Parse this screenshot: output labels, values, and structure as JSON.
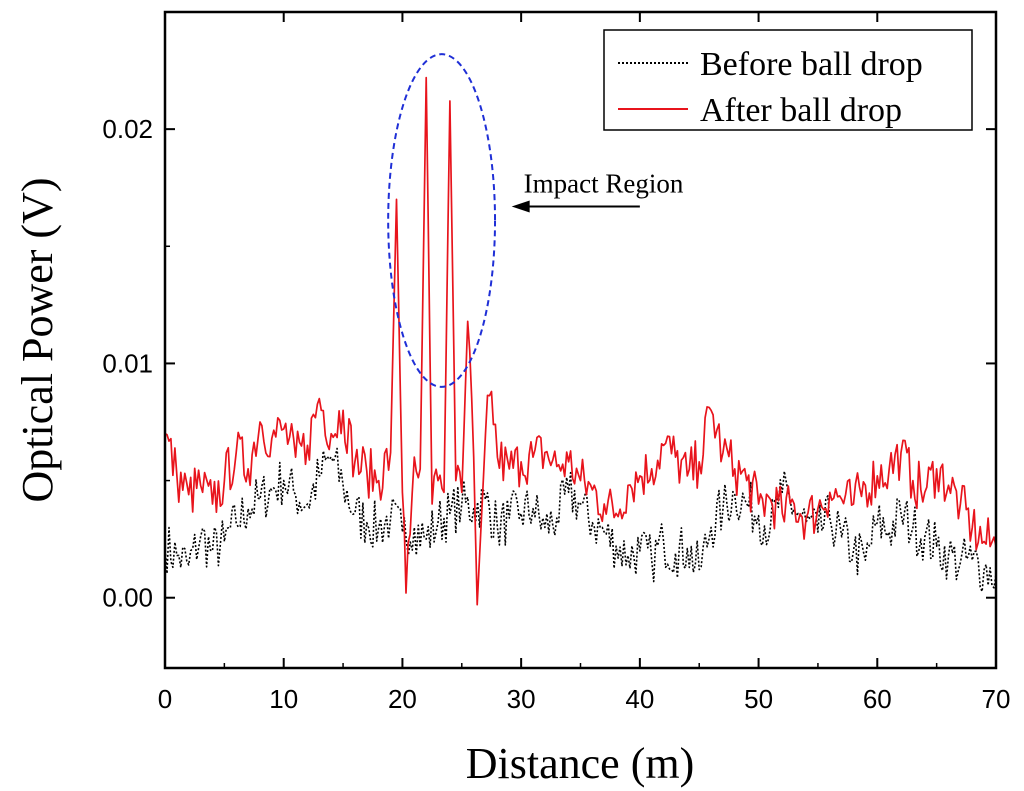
{
  "chart_data": {
    "type": "line",
    "title": "",
    "xlabel": "Distance (m)",
    "ylabel": "Optical Power (V)",
    "xlim": [
      0,
      70
    ],
    "ylim": [
      -0.003,
      0.025
    ],
    "x_ticks": [
      0,
      10,
      20,
      30,
      40,
      50,
      60,
      70
    ],
    "x_tick_labels": [
      "0",
      "10",
      "20",
      "30",
      "40",
      "50",
      "60",
      "70"
    ],
    "y_ticks": [
      0.0,
      0.01,
      0.02
    ],
    "y_tick_labels": [
      "0.00",
      "0.01",
      "0.02"
    ],
    "grid": false,
    "legend_position": "top-right",
    "series": [
      {
        "name": "Before ball drop",
        "color": "#000000",
        "style": "dotted",
        "x": [
          0,
          1,
          2,
          3,
          4,
          5,
          6,
          7,
          8,
          9,
          10,
          11,
          12,
          13,
          14,
          15,
          16,
          17,
          18,
          19,
          20,
          21,
          22,
          23,
          24,
          25,
          26,
          27,
          28,
          29,
          30,
          31,
          32,
          33,
          34,
          35,
          36,
          37,
          38,
          39,
          40,
          41,
          42,
          43,
          44,
          45,
          46,
          47,
          48,
          49,
          50,
          51,
          52,
          53,
          54,
          55,
          56,
          57,
          58,
          59,
          60,
          61,
          62,
          63,
          64,
          65,
          66,
          67,
          68,
          69,
          70
        ],
        "y": [
          0.0022,
          0.0018,
          0.0014,
          0.0026,
          0.002,
          0.0024,
          0.0032,
          0.0038,
          0.0042,
          0.0046,
          0.005,
          0.0044,
          0.004,
          0.0052,
          0.006,
          0.0048,
          0.0036,
          0.0032,
          0.003,
          0.0034,
          0.0028,
          0.003,
          0.0025,
          0.0032,
          0.0036,
          0.004,
          0.0038,
          0.0042,
          0.003,
          0.0034,
          0.0036,
          0.0038,
          0.003,
          0.0034,
          0.0045,
          0.004,
          0.0032,
          0.0028,
          0.0022,
          0.0018,
          0.002,
          0.0016,
          0.0024,
          0.0019,
          0.0021,
          0.0012,
          0.003,
          0.0038,
          0.0044,
          0.004,
          0.0035,
          0.003,
          0.0045,
          0.0038,
          0.0032,
          0.0028,
          0.0034,
          0.0026,
          0.002,
          0.0016,
          0.0032,
          0.0028,
          0.0036,
          0.003,
          0.0026,
          0.0022,
          0.0018,
          0.0015,
          0.0016,
          0.0012,
          0.001
        ]
      },
      {
        "name": "After ball drop",
        "color": "#e8141c",
        "style": "solid",
        "x": [
          0,
          1,
          2,
          3,
          4,
          5,
          6,
          7,
          8,
          9,
          10,
          11,
          12,
          13,
          14,
          15,
          16,
          17,
          18,
          19,
          19.5,
          20,
          20.3,
          21,
          21.5,
          22,
          22.5,
          23,
          23.5,
          24,
          24.5,
          25,
          25.5,
          26,
          26.3,
          27,
          27.5,
          28,
          29,
          30,
          31,
          32,
          33,
          34,
          35,
          36,
          37,
          38,
          39,
          40,
          41,
          42,
          43,
          44,
          45,
          46,
          47,
          48,
          49,
          50,
          51,
          52,
          53,
          54,
          55,
          56,
          57,
          58,
          59,
          60,
          61,
          62,
          63,
          64,
          65,
          66,
          67,
          68,
          69,
          70
        ],
        "y": [
          0.007,
          0.0052,
          0.0044,
          0.0048,
          0.004,
          0.005,
          0.0062,
          0.0055,
          0.0075,
          0.0068,
          0.0072,
          0.006,
          0.0065,
          0.0085,
          0.007,
          0.008,
          0.0058,
          0.0054,
          0.005,
          0.0062,
          0.017,
          0.0045,
          0.0002,
          0.006,
          0.0055,
          0.0222,
          0.004,
          0.005,
          0.0045,
          0.0212,
          0.005,
          0.0045,
          0.0118,
          0.006,
          -0.0003,
          0.007,
          0.0088,
          0.006,
          0.0055,
          0.0058,
          0.006,
          0.0062,
          0.0056,
          0.0058,
          0.005,
          0.0046,
          0.004,
          0.0036,
          0.0048,
          0.0052,
          0.0055,
          0.0065,
          0.006,
          0.0052,
          0.0058,
          0.008,
          0.0062,
          0.0055,
          0.005,
          0.004,
          0.0042,
          0.0036,
          0.004,
          0.0034,
          0.0038,
          0.0045,
          0.0042,
          0.004,
          0.0048,
          0.0052,
          0.0055,
          0.0062,
          0.005,
          0.0045,
          0.0055,
          0.0048,
          0.004,
          0.003,
          0.0024,
          0.0022
        ]
      }
    ],
    "annotations": [
      {
        "type": "ellipse",
        "label": "",
        "color": "#1f2fd6",
        "style": "dashed",
        "x_range": [
          18.8,
          27.8
        ],
        "y_range": [
          0.009,
          0.0232
        ]
      },
      {
        "type": "arrow",
        "label": "Impact Region",
        "from_xy": [
          40,
          0.0167
        ],
        "to_xy": [
          29.2,
          0.0167
        ]
      }
    ]
  }
}
